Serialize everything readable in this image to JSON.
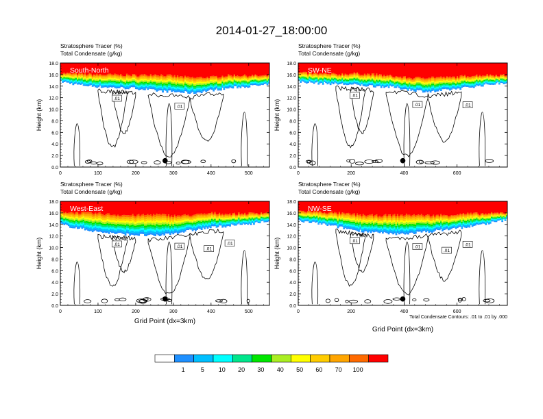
{
  "figure": {
    "title": "2014-01-27_18:00:00",
    "contour_note": "Total Condensate Contours: .01 to .01 by .000"
  },
  "colors": {
    "levels": [
      "#ffffff",
      "#1e90ff",
      "#00bfff",
      "#00ffff",
      "#00e68c",
      "#00e600",
      "#aaee22",
      "#ffff00",
      "#ffcc00",
      "#ffa500",
      "#ff6a00",
      "#ff0000"
    ],
    "contour": "#000000",
    "marker": "#000000"
  },
  "chart_data": [
    {
      "type": "heatmap",
      "panel": "South-North",
      "title_line1": "Stratosphere Tracer   (%)",
      "title_line2": "Total Condensate   (g/kg)",
      "ylabel": "Height (km)",
      "xlabel": "",
      "xlim": [
        0,
        555
      ],
      "ylim": [
        0,
        18
      ],
      "xticks": [
        "0",
        "100",
        "200",
        "300",
        "400",
        "500"
      ],
      "yticks": [
        "0.0",
        "2.0",
        "4.0",
        "6.0",
        "8.0",
        "10.0",
        "12.0",
        "14.0",
        "16.0",
        "18.0"
      ],
      "tracer_top_km": [
        16.4,
        16.3,
        16.2,
        16.2,
        16.1,
        16.3,
        16.0,
        15.7,
        15.8,
        16.1,
        16.0,
        15.9
      ],
      "tracer_base_km": [
        14.8,
        14.2,
        13.9,
        13.7,
        13.6,
        13.2,
        13.0,
        12.8,
        13.3,
        13.7,
        14.0,
        14.2
      ],
      "contour_labels": [
        ".01",
        ".01"
      ],
      "marker": {
        "x": 278,
        "y": 1.1
      }
    },
    {
      "type": "heatmap",
      "panel": "SW-NE",
      "title_line1": "Stratosphere Tracer   (%)",
      "title_line2": "Total Condensate   (g/kg)",
      "ylabel": "Height (km)",
      "xlabel": "",
      "xlim": [
        0,
        790
      ],
      "ylim": [
        0,
        18
      ],
      "xticks": [
        "0",
        "200",
        "400",
        "600"
      ],
      "yticks": [
        "0.0",
        "2.0",
        "4.0",
        "6.0",
        "8.0",
        "10.0",
        "12.0",
        "14.0",
        "16.0",
        "18.0"
      ],
      "tracer_top_km": [
        16.5,
        16.3,
        16.2,
        16.4,
        16.2,
        15.9,
        15.6,
        15.8,
        15.7,
        16.0,
        16.1,
        16.0
      ],
      "tracer_base_km": [
        14.8,
        14.5,
        14.4,
        14.2,
        14.0,
        13.8,
        13.3,
        13.0,
        13.4,
        13.8,
        14.3,
        14.6
      ],
      "contour_labels": [
        ".01",
        ".01",
        ".01"
      ],
      "marker": {
        "x": 395,
        "y": 1.1
      }
    },
    {
      "type": "heatmap",
      "panel": "West-East",
      "title_line1": "Stratosphere Tracer   (%)",
      "title_line2": "Total Condensate   (g/kg)",
      "ylabel": "Height (km)",
      "xlabel": "Grid Point (dx=3km)",
      "xlim": [
        0,
        555
      ],
      "ylim": [
        0,
        18
      ],
      "xticks": [
        "0",
        "100",
        "200",
        "300",
        "400",
        "500"
      ],
      "yticks": [
        "0.0",
        "2.0",
        "4.0",
        "6.0",
        "8.0",
        "10.0",
        "12.0",
        "14.0",
        "16.0",
        "18.0"
      ],
      "tracer_top_km": [
        16.4,
        16.3,
        16.2,
        16.0,
        15.9,
        16.1,
        15.8,
        15.9,
        16.2,
        16.0,
        16.1,
        16.2
      ],
      "tracer_base_km": [
        14.0,
        13.3,
        12.7,
        12.4,
        12.2,
        12.0,
        12.5,
        13.0,
        13.5,
        13.8,
        14.1,
        14.6
      ],
      "contour_labels": [
        ".01",
        ".01",
        ".01",
        ".01"
      ],
      "marker": {
        "x": 278,
        "y": 1.1
      }
    },
    {
      "type": "heatmap",
      "panel": "NW-SE",
      "title_line1": "Stratosphere Tracer   (%)",
      "title_line2": "Total Condensate   (g/kg)",
      "ylabel": "Height (km)",
      "xlabel": "Grid Point (dx=3km)",
      "xlim": [
        0,
        790
      ],
      "ylim": [
        0,
        18
      ],
      "xticks": [
        "0",
        "200",
        "400",
        "600"
      ],
      "yticks": [
        "0.0",
        "2.0",
        "4.0",
        "6.0",
        "8.0",
        "10.0",
        "12.0",
        "14.0",
        "16.0",
        "18.0"
      ],
      "tracer_top_km": [
        16.5,
        16.4,
        16.2,
        16.0,
        15.8,
        15.9,
        16.0,
        15.8,
        15.9,
        16.1,
        16.0,
        16.2
      ],
      "tracer_base_km": [
        14.6,
        14.2,
        13.6,
        13.0,
        12.6,
        12.3,
        12.5,
        12.8,
        13.2,
        13.6,
        14.2,
        14.8
      ],
      "contour_labels": [
        ".01",
        ".01",
        ".01",
        ".01"
      ],
      "marker": {
        "x": 395,
        "y": 1.1
      }
    }
  ],
  "colorbar": {
    "labels": [
      "1",
      "5",
      "10",
      "20",
      "30",
      "40",
      "50",
      "60",
      "70",
      "100"
    ]
  }
}
